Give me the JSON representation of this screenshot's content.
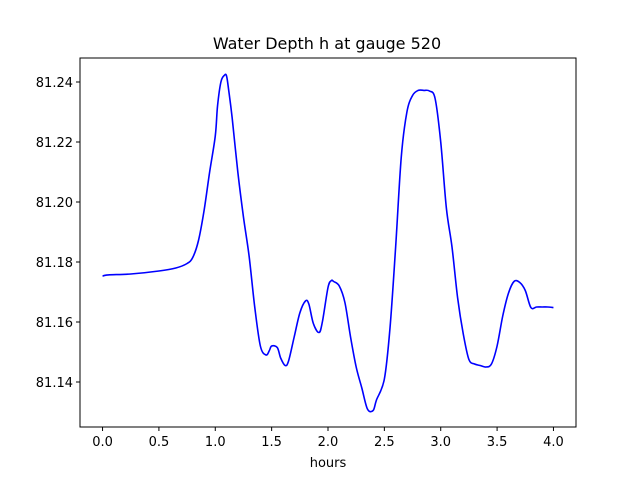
{
  "chart_data": {
    "type": "line",
    "title": "Water Depth h at gauge 520",
    "xlabel": "hours",
    "ylabel": "",
    "xlim": [
      -0.2,
      4.2
    ],
    "ylim": [
      81.125,
      81.248
    ],
    "xticks": [
      "0.0",
      "0.5",
      "1.0",
      "1.5",
      "2.0",
      "2.5",
      "3.0",
      "3.5",
      "4.0"
    ],
    "yticks": [
      "81.14",
      "81.16",
      "81.18",
      "81.20",
      "81.22",
      "81.24"
    ],
    "grid": false,
    "series": [
      {
        "color": "#0000ff",
        "x": [
          0.0,
          0.05,
          0.25,
          0.5,
          0.65,
          0.75,
          0.8,
          0.85,
          0.9,
          0.95,
          1.0,
          1.02,
          1.05,
          1.08,
          1.1,
          1.12,
          1.15,
          1.2,
          1.25,
          1.3,
          1.35,
          1.4,
          1.45,
          1.48,
          1.5,
          1.55,
          1.58,
          1.62,
          1.65,
          1.7,
          1.75,
          1.8,
          1.83,
          1.87,
          1.92,
          1.95,
          2.0,
          2.03,
          2.05,
          2.1,
          2.15,
          2.2,
          2.25,
          2.3,
          2.35,
          2.4,
          2.43,
          2.5,
          2.55,
          2.6,
          2.65,
          2.7,
          2.75,
          2.8,
          2.85,
          2.9,
          2.95,
          3.0,
          3.05,
          3.1,
          3.15,
          3.2,
          3.25,
          3.3,
          3.35,
          3.4,
          3.45,
          3.5,
          3.55,
          3.6,
          3.65,
          3.7,
          3.75,
          3.8,
          3.85,
          3.9,
          3.95,
          4.0
        ],
        "y": [
          81.1753,
          81.1757,
          81.176,
          81.177,
          81.178,
          81.1795,
          81.1815,
          81.187,
          81.197,
          81.21,
          81.222,
          81.232,
          81.24,
          81.2422,
          81.242,
          81.237,
          81.228,
          81.21,
          81.195,
          81.182,
          81.165,
          81.152,
          81.149,
          81.1505,
          81.152,
          81.1515,
          81.148,
          81.1455,
          81.147,
          81.155,
          81.163,
          81.167,
          81.166,
          81.1595,
          81.1565,
          81.16,
          81.1715,
          81.1738,
          81.1735,
          81.172,
          81.1665,
          81.155,
          81.145,
          81.138,
          81.131,
          81.1305,
          81.134,
          81.141,
          81.158,
          81.185,
          81.215,
          81.23,
          81.2355,
          81.2372,
          81.2372,
          81.237,
          81.2345,
          81.22,
          81.198,
          81.185,
          81.168,
          81.156,
          81.1475,
          81.146,
          81.1455,
          81.145,
          81.146,
          81.152,
          81.162,
          81.1695,
          81.1735,
          81.1732,
          81.1705,
          81.1648,
          81.165,
          81.165,
          81.165,
          81.1648
        ]
      }
    ]
  }
}
